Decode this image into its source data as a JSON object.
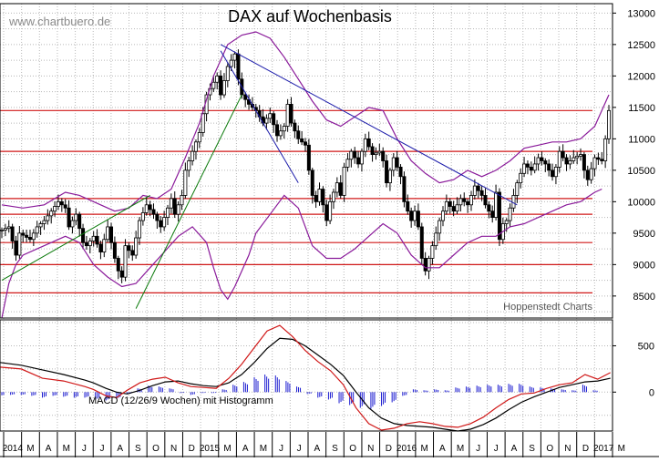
{
  "watermark": "www.chartbuero.de",
  "source_note": "Hoppenstedt Charts",
  "chart_data": [
    {
      "type": "candlestick",
      "title": "DAX auf Wochenbasis",
      "x_labels": [
        "2014",
        "M",
        "A",
        "M",
        "J",
        "J",
        "A",
        "S",
        "O",
        "N",
        "D",
        "2015",
        "M",
        "A",
        "M",
        "J",
        "J",
        "A",
        "S",
        "O",
        "N",
        "D",
        "2016",
        "M",
        "A",
        "M",
        "J",
        "J",
        "A",
        "S",
        "O",
        "N",
        "D",
        "2017",
        "M"
      ],
      "y_ticks": [
        8500,
        9000,
        9500,
        10000,
        10500,
        11000,
        11500,
        12000,
        12500,
        13000
      ],
      "ylim": [
        8150,
        13150
      ],
      "grid": true,
      "close_path": [
        [
          0,
          9550
        ],
        [
          2,
          9600
        ],
        [
          4,
          9150
        ],
        [
          5,
          9500
        ],
        [
          8,
          9400
        ],
        [
          10,
          9600
        ],
        [
          12,
          9700
        ],
        [
          14,
          9850
        ],
        [
          16,
          10000
        ],
        [
          18,
          9900
        ],
        [
          19,
          9600
        ],
        [
          21,
          9800
        ],
        [
          23,
          9350
        ],
        [
          24,
          9300
        ],
        [
          26,
          9450
        ],
        [
          28,
          9200
        ],
        [
          30,
          9600
        ],
        [
          32,
          9100
        ],
        [
          33,
          8900
        ],
        [
          34,
          8800
        ],
        [
          35,
          9300
        ],
        [
          37,
          9150
        ],
        [
          39,
          9700
        ],
        [
          41,
          9950
        ],
        [
          43,
          9800
        ],
        [
          45,
          9600
        ],
        [
          47,
          9900
        ],
        [
          48,
          10050
        ],
        [
          49,
          9800
        ],
        [
          51,
          10100
        ],
        [
          52,
          10500
        ],
        [
          54,
          10800
        ],
        [
          56,
          11100
        ],
        [
          58,
          11700
        ],
        [
          60,
          11900
        ],
        [
          61,
          12000
        ],
        [
          62,
          11700
        ],
        [
          64,
          12150
        ],
        [
          66,
          12350
        ],
        [
          67,
          11950
        ],
        [
          68,
          11700
        ],
        [
          70,
          11550
        ],
        [
          72,
          11450
        ],
        [
          74,
          11250
        ],
        [
          76,
          11400
        ],
        [
          78,
          11050
        ],
        [
          80,
          11200
        ],
        [
          81,
          11550
        ],
        [
          82,
          11250
        ],
        [
          84,
          11000
        ],
        [
          86,
          10900
        ],
        [
          88,
          10100
        ],
        [
          89,
          10000
        ],
        [
          90,
          10200
        ],
        [
          92,
          9700
        ],
        [
          93,
          10000
        ],
        [
          95,
          10300
        ],
        [
          96,
          10100
        ],
        [
          97,
          10550
        ],
        [
          99,
          10800
        ],
        [
          101,
          10600
        ],
        [
          103,
          11000
        ],
        [
          105,
          10750
        ],
        [
          107,
          10800
        ],
        [
          108,
          10650
        ],
        [
          109,
          10300
        ],
        [
          111,
          10700
        ],
        [
          113,
          10400
        ],
        [
          114,
          10000
        ],
        [
          116,
          9700
        ],
        [
          117,
          9850
        ],
        [
          118,
          9600
        ],
        [
          119,
          9100
        ],
        [
          120,
          8900
        ],
        [
          122,
          9300
        ],
        [
          124,
          9700
        ],
        [
          126,
          10000
        ],
        [
          128,
          9850
        ],
        [
          130,
          10050
        ],
        [
          132,
          9950
        ],
        [
          134,
          10250
        ],
        [
          136,
          10100
        ],
        [
          137,
          9950
        ],
        [
          139,
          9750
        ],
        [
          140,
          10150
        ],
        [
          141,
          9400
        ],
        [
          142,
          9650
        ],
        [
          143,
          9700
        ],
        [
          145,
          10100
        ],
        [
          146,
          10300
        ],
        [
          148,
          10600
        ],
        [
          150,
          10500
        ],
        [
          152,
          10700
        ],
        [
          154,
          10600
        ],
        [
          156,
          10400
        ],
        [
          157,
          10550
        ],
        [
          158,
          10800
        ],
        [
          160,
          10600
        ],
        [
          162,
          10700
        ],
        [
          164,
          10750
        ],
        [
          165,
          10500
        ],
        [
          166,
          10350
        ],
        [
          168,
          10700
        ],
        [
          170,
          10650
        ],
        [
          171,
          11000
        ],
        [
          172,
          11450
        ]
      ],
      "bollinger_upper": [
        [
          0,
          9950
        ],
        [
          6,
          9900
        ],
        [
          12,
          9950
        ],
        [
          18,
          10150
        ],
        [
          22,
          10100
        ],
        [
          28,
          9950
        ],
        [
          32,
          9850
        ],
        [
          36,
          9900
        ],
        [
          40,
          10100
        ],
        [
          44,
          10050
        ],
        [
          48,
          10200
        ],
        [
          52,
          10700
        ],
        [
          56,
          11250
        ],
        [
          60,
          12000
        ],
        [
          64,
          12500
        ],
        [
          68,
          12650
        ],
        [
          72,
          12700
        ],
        [
          76,
          12600
        ],
        [
          80,
          12300
        ],
        [
          84,
          11950
        ],
        [
          88,
          11600
        ],
        [
          92,
          11300
        ],
        [
          96,
          11200
        ],
        [
          100,
          11350
        ],
        [
          104,
          11500
        ],
        [
          108,
          11450
        ],
        [
          112,
          11000
        ],
        [
          116,
          10650
        ],
        [
          120,
          10450
        ],
        [
          124,
          10300
        ],
        [
          128,
          10350
        ],
        [
          132,
          10500
        ],
        [
          136,
          10400
        ],
        [
          140,
          10500
        ],
        [
          144,
          10650
        ],
        [
          148,
          10850
        ],
        [
          152,
          10900
        ],
        [
          156,
          10950
        ],
        [
          160,
          10950
        ],
        [
          164,
          11000
        ],
        [
          168,
          11200
        ],
        [
          172,
          11700
        ]
      ],
      "bollinger_lower": [
        [
          0,
          8150
        ],
        [
          2,
          8700
        ],
        [
          4,
          9000
        ],
        [
          6,
          9150
        ],
        [
          10,
          9250
        ],
        [
          14,
          9350
        ],
        [
          18,
          9450
        ],
        [
          22,
          9350
        ],
        [
          26,
          9000
        ],
        [
          30,
          8800
        ],
        [
          34,
          8650
        ],
        [
          38,
          8700
        ],
        [
          42,
          8950
        ],
        [
          46,
          9200
        ],
        [
          50,
          9450
        ],
        [
          54,
          9600
        ],
        [
          58,
          9350
        ],
        [
          60,
          8950
        ],
        [
          62,
          8600
        ],
        [
          64,
          8450
        ],
        [
          66,
          8650
        ],
        [
          68,
          8900
        ],
        [
          70,
          9150
        ],
        [
          72,
          9500
        ],
        [
          76,
          9800
        ],
        [
          80,
          10100
        ],
        [
          84,
          9900
        ],
        [
          88,
          9300
        ],
        [
          92,
          9100
        ],
        [
          96,
          9100
        ],
        [
          100,
          9250
        ],
        [
          104,
          9450
        ],
        [
          108,
          9650
        ],
        [
          112,
          9500
        ],
        [
          116,
          9150
        ],
        [
          120,
          8950
        ],
        [
          124,
          8950
        ],
        [
          128,
          9150
        ],
        [
          132,
          9350
        ],
        [
          136,
          9450
        ],
        [
          140,
          9450
        ],
        [
          144,
          9600
        ],
        [
          148,
          9650
        ],
        [
          152,
          9750
        ],
        [
          156,
          9850
        ],
        [
          160,
          9950
        ],
        [
          164,
          10000
        ],
        [
          168,
          10150
        ],
        [
          170,
          10200
        ]
      ],
      "horizontal_lines": [
        8550,
        9000,
        9350,
        9800,
        10050,
        10800,
        11450
      ],
      "trendlines": [
        {
          "color": "#1c1caa",
          "from": [
            62,
            12500
          ],
          "to": [
            146,
            9950
          ]
        },
        {
          "color": "#1c1caa",
          "from": [
            62,
            12400
          ],
          "to": [
            84,
            10300
          ]
        },
        {
          "color": "#0a7a0a",
          "from": [
            0,
            8750
          ],
          "to": [
            42,
            10100
          ]
        },
        {
          "color": "#0a7a0a",
          "from": [
            38,
            8300
          ],
          "to": [
            68,
            11700
          ]
        }
      ]
    },
    {
      "type": "line+histogram",
      "label": "MACD (12/26/9 Wochen) mit Histogramm",
      "y_ticks": [
        0,
        500
      ],
      "ylim": [
        -420,
        780
      ],
      "macd": [
        [
          0,
          270
        ],
        [
          10,
          250
        ],
        [
          20,
          150
        ],
        [
          30,
          120
        ],
        [
          40,
          60
        ],
        [
          44,
          30
        ],
        [
          50,
          -40
        ],
        [
          55,
          -60
        ],
        [
          60,
          20
        ],
        [
          66,
          100
        ],
        [
          72,
          140
        ],
        [
          78,
          160
        ],
        [
          84,
          100
        ],
        [
          90,
          60
        ],
        [
          96,
          50
        ],
        [
          102,
          40
        ],
        [
          108,
          150
        ],
        [
          114,
          300
        ],
        [
          120,
          480
        ],
        [
          126,
          660
        ],
        [
          132,
          720
        ],
        [
          138,
          600
        ],
        [
          144,
          450
        ],
        [
          150,
          330
        ],
        [
          156,
          230
        ],
        [
          162,
          80
        ],
        [
          168,
          -170
        ],
        [
          174,
          -340
        ],
        [
          180,
          -410
        ],
        [
          186,
          -390
        ],
        [
          192,
          -340
        ],
        [
          198,
          -320
        ],
        [
          204,
          -340
        ],
        [
          210,
          -370
        ],
        [
          216,
          -380
        ],
        [
          222,
          -340
        ],
        [
          228,
          -270
        ],
        [
          234,
          -170
        ],
        [
          240,
          -80
        ],
        [
          246,
          -20
        ],
        [
          252,
          -10
        ],
        [
          258,
          40
        ],
        [
          264,
          80
        ],
        [
          270,
          100
        ],
        [
          276,
          190
        ],
        [
          282,
          140
        ],
        [
          288,
          210
        ]
      ],
      "signal": [
        [
          0,
          320
        ],
        [
          10,
          290
        ],
        [
          20,
          240
        ],
        [
          30,
          190
        ],
        [
          40,
          130
        ],
        [
          44,
          100
        ],
        [
          50,
          40
        ],
        [
          55,
          0
        ],
        [
          60,
          -20
        ],
        [
          66,
          20
        ],
        [
          72,
          70
        ],
        [
          78,
          110
        ],
        [
          84,
          120
        ],
        [
          90,
          90
        ],
        [
          96,
          70
        ],
        [
          102,
          60
        ],
        [
          108,
          100
        ],
        [
          114,
          190
        ],
        [
          120,
          320
        ],
        [
          126,
          470
        ],
        [
          132,
          580
        ],
        [
          138,
          570
        ],
        [
          144,
          500
        ],
        [
          150,
          400
        ],
        [
          156,
          300
        ],
        [
          162,
          180
        ],
        [
          168,
          0
        ],
        [
          174,
          -170
        ],
        [
          180,
          -280
        ],
        [
          186,
          -340
        ],
        [
          192,
          -360
        ],
        [
          198,
          -370
        ],
        [
          204,
          -380
        ],
        [
          210,
          -400
        ],
        [
          216,
          -420
        ],
        [
          222,
          -400
        ],
        [
          228,
          -350
        ],
        [
          234,
          -280
        ],
        [
          240,
          -190
        ],
        [
          246,
          -110
        ],
        [
          252,
          -50
        ],
        [
          258,
          0
        ],
        [
          264,
          50
        ],
        [
          270,
          80
        ],
        [
          276,
          110
        ],
        [
          282,
          120
        ],
        [
          288,
          150
        ]
      ],
      "histogram": [
        [
          0,
          -40
        ],
        [
          5,
          -30
        ],
        [
          10,
          -30
        ],
        [
          15,
          -40
        ],
        [
          20,
          -60
        ],
        [
          25,
          -40
        ],
        [
          30,
          -50
        ],
        [
          35,
          -60
        ],
        [
          40,
          -60
        ],
        [
          45,
          -80
        ],
        [
          50,
          -90
        ],
        [
          55,
          -70
        ],
        [
          60,
          -20
        ],
        [
          65,
          40
        ],
        [
          70,
          70
        ],
        [
          75,
          60
        ],
        [
          80,
          40
        ],
        [
          85,
          -10
        ],
        [
          90,
          -30
        ],
        [
          95,
          -10
        ],
        [
          100,
          -10
        ],
        [
          105,
          30
        ],
        [
          110,
          80
        ],
        [
          115,
          110
        ],
        [
          120,
          160
        ],
        [
          125,
          190
        ],
        [
          130,
          180
        ],
        [
          135,
          120
        ],
        [
          140,
          60
        ],
        [
          145,
          -20
        ],
        [
          150,
          -60
        ],
        [
          155,
          -80
        ],
        [
          160,
          -120
        ],
        [
          165,
          -140
        ],
        [
          170,
          -170
        ],
        [
          175,
          -180
        ],
        [
          180,
          -150
        ],
        [
          185,
          -110
        ],
        [
          190,
          -40
        ],
        [
          195,
          30
        ],
        [
          200,
          20
        ],
        [
          205,
          30
        ],
        [
          210,
          20
        ],
        [
          215,
          50
        ],
        [
          220,
          60
        ],
        [
          225,
          70
        ],
        [
          230,
          80
        ],
        [
          235,
          80
        ],
        [
          240,
          90
        ],
        [
          245,
          90
        ],
        [
          250,
          60
        ],
        [
          255,
          50
        ],
        [
          260,
          40
        ],
        [
          265,
          30
        ],
        [
          270,
          20
        ],
        [
          275,
          80
        ],
        [
          280,
          20
        ]
      ]
    }
  ]
}
